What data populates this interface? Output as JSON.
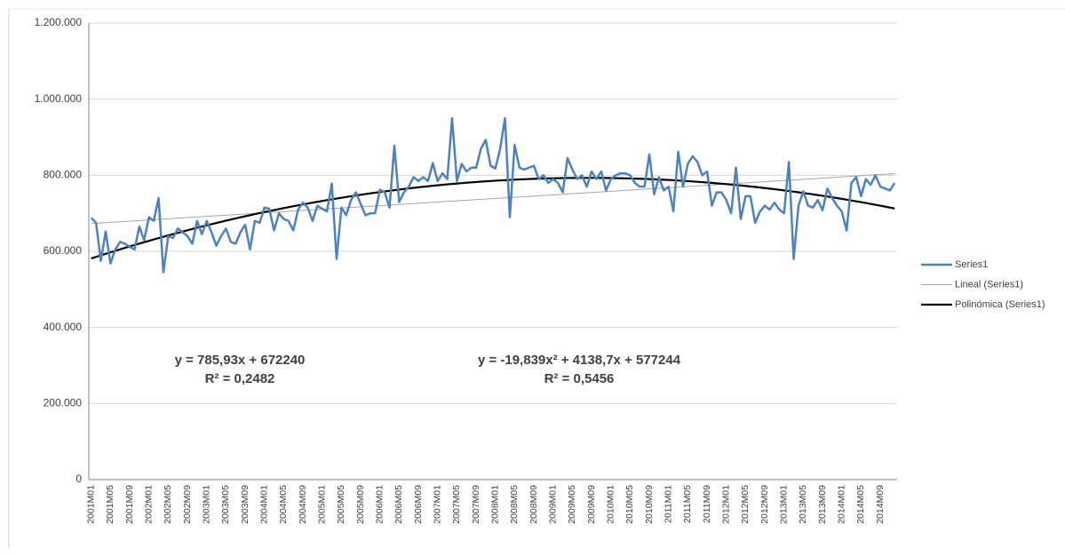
{
  "chart_data": {
    "type": "line",
    "categories": [
      "2001M01",
      null,
      null,
      null,
      "2001M05",
      null,
      null,
      null,
      "2001M09",
      null,
      null,
      null,
      "2002M01",
      null,
      null,
      null,
      "2002M05",
      null,
      null,
      null,
      "2002M09",
      null,
      null,
      null,
      "2003M01",
      null,
      null,
      null,
      "2003M05",
      null,
      null,
      null,
      "2003M09",
      null,
      null,
      null,
      "2004M01",
      null,
      null,
      null,
      "2004M05",
      null,
      null,
      null,
      "2004M09",
      null,
      null,
      null,
      "2005M01",
      null,
      null,
      null,
      "2005M05",
      null,
      null,
      null,
      "2005M09",
      null,
      null,
      null,
      "2006M01",
      null,
      null,
      null,
      "2006M05",
      null,
      null,
      null,
      "2006M09",
      null,
      null,
      null,
      "2007M01",
      null,
      null,
      null,
      "2007M05",
      null,
      null,
      null,
      "2007M09",
      null,
      null,
      null,
      "2008M01",
      null,
      null,
      null,
      "2008M05",
      null,
      null,
      null,
      "2008M09",
      null,
      null,
      null,
      "2009M01",
      null,
      null,
      null,
      "2009M05",
      null,
      null,
      null,
      "2009M09",
      null,
      null,
      null,
      "2010M01",
      null,
      null,
      null,
      "2010M05",
      null,
      null,
      null,
      "2010M09",
      null,
      null,
      null,
      "2011M01",
      null,
      null,
      null,
      "2011M05",
      null,
      null,
      null,
      "2011M09",
      null,
      null,
      null,
      "2012M01",
      null,
      null,
      null,
      "2012M05",
      null,
      null,
      null,
      "2012M09",
      null,
      null,
      null,
      "2013M01",
      null,
      null,
      null,
      "2013M05",
      null,
      null,
      null,
      "2013M09",
      null,
      null,
      null,
      "2014M01",
      null,
      null,
      null,
      "2014M05",
      null,
      null,
      null,
      "2014M09",
      null,
      null,
      null
    ],
    "series": [
      {
        "name": "Series1",
        "color": "#4f81bd",
        "values": [
          688000,
          675000,
          575000,
          652000,
          568000,
          605000,
          625000,
          620000,
          612000,
          605000,
          665000,
          630000,
          690000,
          680000,
          740000,
          545000,
          640000,
          635000,
          660000,
          650000,
          640000,
          620000,
          680000,
          645000,
          680000,
          650000,
          615000,
          640000,
          660000,
          625000,
          620000,
          650000,
          670000,
          605000,
          680000,
          675000,
          715000,
          712000,
          655000,
          700000,
          685000,
          680000,
          655000,
          710000,
          728000,
          715000,
          680000,
          720000,
          712000,
          705000,
          778000,
          580000,
          715000,
          695000,
          735000,
          755000,
          725000,
          695000,
          700000,
          700000,
          762000,
          755000,
          715000,
          878000,
          730000,
          755000,
          770000,
          795000,
          785000,
          795000,
          785000,
          832000,
          785000,
          805000,
          790000,
          950000,
          785000,
          830000,
          810000,
          820000,
          820000,
          870000,
          893000,
          825000,
          818000,
          870000,
          950000,
          690000,
          880000,
          820000,
          815000,
          820000,
          825000,
          790000,
          800000,
          780000,
          790000,
          780000,
          755000,
          845000,
          815000,
          790000,
          800000,
          770000,
          810000,
          790000,
          810000,
          760000,
          790000,
          800000,
          805000,
          805000,
          800000,
          780000,
          770000,
          770000,
          855000,
          750000,
          795000,
          760000,
          770000,
          705000,
          862000,
          770000,
          830000,
          850000,
          835000,
          800000,
          810000,
          720000,
          755000,
          755000,
          735000,
          700000,
          820000,
          685000,
          745000,
          745000,
          675000,
          705000,
          720000,
          710000,
          728000,
          710000,
          700000,
          835000,
          580000,
          720000,
          758000,
          720000,
          715000,
          735000,
          708000,
          765000,
          740000,
          720000,
          705000,
          655000,
          780000,
          795000,
          745000,
          790000,
          775000,
          800000,
          770000,
          765000,
          760000,
          780000
        ]
      }
    ],
    "trendlines": [
      {
        "name": "Lineal (Series1)",
        "color": "#a6a6a6",
        "coefficients": [
          672240,
          785.93
        ],
        "equation": "y = 785,93x + 672240",
        "r2": "R² = 0,2482"
      },
      {
        "name": "Polinómica (Series1)",
        "color": "#000000",
        "coefficients": [
          577244,
          4138.7,
          -19.839
        ],
        "equation": "y = -19,839x² + 4138,7x + 577244",
        "r2": "R² = 0,5456"
      }
    ],
    "ylim": [
      0,
      1200000
    ],
    "yticks": [
      0,
      {
        "value": 200000,
        "label": "200.000"
      },
      {
        "value": 400000,
        "label": "400.000"
      },
      {
        "value": 600000,
        "label": "600.000"
      },
      {
        "value": 800000,
        "label": "800.000"
      },
      {
        "value": 1000000,
        "label": "1.000.000"
      },
      {
        "value": 1200000,
        "label": "1.200.000"
      }
    ],
    "grid": true,
    "legend": "right"
  }
}
